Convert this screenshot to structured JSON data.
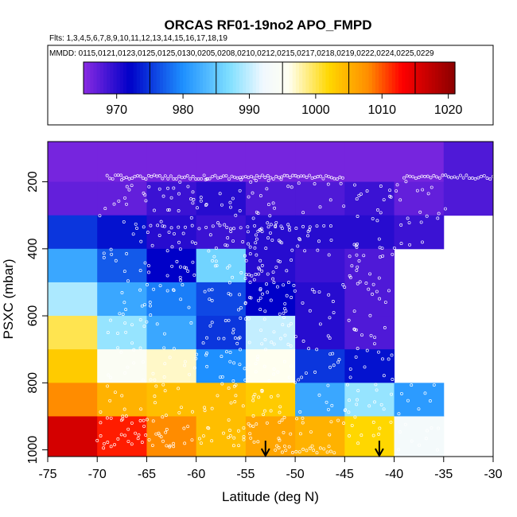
{
  "chart_data": {
    "type": "heatmap",
    "title": "ORCAS RF01-19no2 APO_FMPD",
    "flights_label": "Flts: 1,3,4,5,6,7,8,9,10,11,12,13,14,15,16,17,18,19",
    "dates_label": "MMDD: 0115,0121,0123,0125,0125,0130,0205,0208,0210,0212,0215,0217,0218,0219,0222,0224,0225,0229",
    "xlabel": "Latitude (deg N)",
    "ylabel": "PSXC (mbar)",
    "xlim": [
      -75,
      -30
    ],
    "ylim": [
      1020,
      80
    ],
    "x_ticks": [
      -75,
      -70,
      -65,
      -60,
      -55,
      -50,
      -45,
      -40,
      -35,
      -30
    ],
    "y_ticks": [
      200,
      400,
      600,
      800,
      1000
    ],
    "colorbar": {
      "range": [
        965,
        1021
      ],
      "ticks": [
        970,
        980,
        990,
        1000,
        1010,
        1020
      ],
      "stops": [
        {
          "v": 965,
          "c": "#8a2be2"
        },
        {
          "v": 972,
          "c": "#0000c8"
        },
        {
          "v": 980,
          "c": "#1e90ff"
        },
        {
          "v": 987,
          "c": "#7fdfff"
        },
        {
          "v": 992,
          "c": "#f0f8ff"
        },
        {
          "v": 996,
          "c": "#fffff0"
        },
        {
          "v": 1002,
          "c": "#ffd700"
        },
        {
          "v": 1008,
          "c": "#ff8c00"
        },
        {
          "v": 1013,
          "c": "#ff0000"
        },
        {
          "v": 1021,
          "c": "#8b0000"
        }
      ]
    },
    "cells": {
      "lat_edges": [
        -75,
        -70,
        -65,
        -60,
        -55,
        -50,
        -45,
        -40,
        -35
      ],
      "pressure_edges": [
        100,
        200,
        300,
        400,
        500,
        600,
        700,
        800,
        900,
        1000
      ],
      "values": [
        [
          966,
          966,
          966,
          966,
          966,
          966,
          966,
          966
        ],
        [
          967,
          967,
          969,
          970,
          968,
          968,
          969,
          967
        ],
        [
          975,
          973,
          970,
          969,
          970,
          970,
          970,
          969
        ],
        [
          982,
          977,
          972,
          986,
          970,
          969,
          968,
          null
        ],
        [
          989,
          982,
          979,
          976,
          972,
          970,
          968,
          null
        ],
        [
          1000,
          988,
          982,
          975,
          990,
          970,
          968,
          null
        ],
        [
          1003,
          995,
          997,
          980,
          996,
          975,
          973,
          null
        ],
        [
          1008,
          1005,
          1004,
          1004,
          1003,
          982,
          988,
          981
        ],
        [
          1016,
          1012,
          1008,
          1004,
          1006,
          1005,
          1002,
          993
        ]
      ]
    },
    "arrows_at_latitude": [
      -53,
      -41.5
    ]
  }
}
